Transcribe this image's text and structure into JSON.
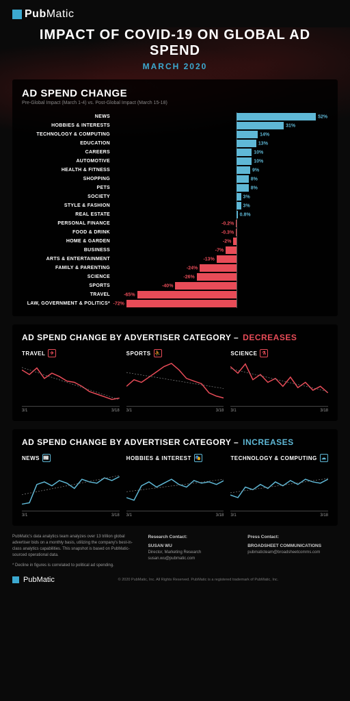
{
  "brand": {
    "name_a": "Pub",
    "name_b": "Matic"
  },
  "title": "IMPACT OF COVID-19 ON GLOBAL AD SPEND",
  "subtitle": "MARCH 2020",
  "colors": {
    "pos": "#5fb8d6",
    "neg": "#e84c58",
    "accent": "#3ca9d0"
  },
  "bar_chart": {
    "title": "AD SPEND CHANGE",
    "subtitle": "Pre-Global Impact (March 1-4) vs. Post-Global Impact (March 15-18)",
    "neg_max": 80,
    "pos_max": 60,
    "rows": [
      {
        "label": "NEWS",
        "value": 52
      },
      {
        "label": "HOBBIES & INTERESTS",
        "value": 31
      },
      {
        "label": "TECHNOLOGY & COMPUTING",
        "value": 14
      },
      {
        "label": "EDUCATION",
        "value": 13
      },
      {
        "label": "CAREERS",
        "value": 10
      },
      {
        "label": "AUTOMOTIVE",
        "value": 10
      },
      {
        "label": "HEALTH & FITNESS",
        "value": 9
      },
      {
        "label": "SHOPPING",
        "value": 8
      },
      {
        "label": "PETS",
        "value": 8
      },
      {
        "label": "SOCIETY",
        "value": 3
      },
      {
        "label": "STYLE & FASHION",
        "value": 3
      },
      {
        "label": "REAL ESTATE",
        "value": 0.8
      },
      {
        "label": "PERSONAL FINANCE",
        "value": -0.2
      },
      {
        "label": "FOOD & DRINK",
        "value": -0.3
      },
      {
        "label": "HOME & GARDEN",
        "value": -2
      },
      {
        "label": "BUSINESS",
        "value": -7
      },
      {
        "label": "ARTS & ENTERTAINMENT",
        "value": -13
      },
      {
        "label": "FAMILY & PARENTING",
        "value": -24
      },
      {
        "label": "SCIENCE",
        "value": -26
      },
      {
        "label": "SPORTS",
        "value": -40
      },
      {
        "label": "TRAVEL",
        "value": -65
      },
      {
        "label": "LAW, GOVERNMENT & POLITICS*",
        "value": -72
      }
    ]
  },
  "decreases": {
    "title": "AD SPEND CHANGE BY ADVERTISER CATEGORY –",
    "word": "DECREASES",
    "color": "#e84c58",
    "date_start": "3/1",
    "date_end": "3/18",
    "charts": [
      {
        "label": "TRAVEL",
        "icon": "✈",
        "points": [
          55,
          48,
          58,
          42,
          50,
          45,
          38,
          36,
          30,
          22,
          18,
          14,
          10,
          12
        ]
      },
      {
        "label": "SPORTS",
        "icon": "⛹",
        "points": [
          30,
          40,
          36,
          44,
          52,
          60,
          65,
          55,
          42,
          38,
          34,
          20,
          15,
          12
        ]
      },
      {
        "label": "SCIENCE",
        "icon": "⚗",
        "points": [
          60,
          50,
          64,
          40,
          48,
          36,
          42,
          30,
          44,
          28,
          36,
          24,
          30,
          20
        ]
      }
    ]
  },
  "increases": {
    "title": "AD SPEND CHANGE BY ADVERTISER CATEGORY –",
    "word": "INCREASES",
    "color": "#5fb8d6",
    "date_start": "3/1",
    "date_end": "3/18",
    "charts": [
      {
        "label": "NEWS",
        "icon": "📰",
        "points": [
          10,
          12,
          40,
          44,
          38,
          46,
          42,
          34,
          48,
          44,
          42,
          50,
          46,
          52
        ]
      },
      {
        "label": "HOBBIES & INTEREST",
        "icon": "🎭",
        "points": [
          20,
          16,
          38,
          44,
          36,
          42,
          48,
          40,
          36,
          46,
          42,
          44,
          40,
          46
        ]
      },
      {
        "label": "TECHNOLOGY & COMPUTING",
        "icon": "☁",
        "points": [
          24,
          20,
          36,
          32,
          40,
          34,
          44,
          38,
          46,
          40,
          48,
          44,
          42,
          48
        ]
      }
    ]
  },
  "footer": {
    "desc": "PubMatic's data analytics team analyzes over 13 trillion global advertiser bids on a monthly basis, utilizing the company's best-in-class analytics capabilities. This snapshot is based on PubMatic-sourced operational data.",
    "note": "* Decline in figures is correlated to political ad spending.",
    "research_head": "Research Contact:",
    "research_name": "SUSAN WU",
    "research_title": "Director, Marketing Research",
    "research_email": "susan.wu@pubmatic.com",
    "press_head": "Press Contact:",
    "press_name": "BROADSHEET COMMUNICATIONS",
    "press_email": "pubmaticteam@broadsheetcomms.com",
    "copyright": "© 2020 PubMatic, Inc. All Rights Reserved. PubMatic is a registered trademark of PubMatic, Inc."
  }
}
